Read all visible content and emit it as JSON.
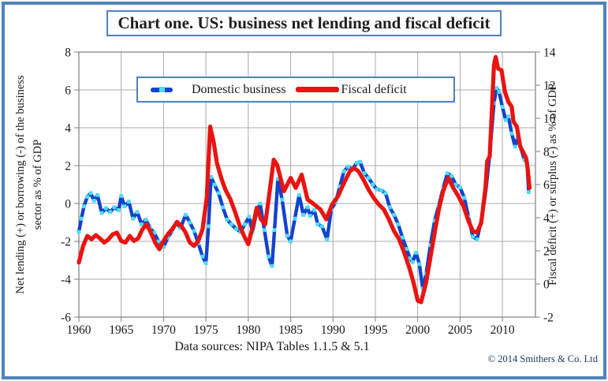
{
  "frame": {
    "title": "Chart one. US: business net lending and fiscal deficit"
  },
  "legend": {
    "items": [
      {
        "label": "Domestic business"
      },
      {
        "label": "Fiscal deficit"
      }
    ]
  },
  "axes": {
    "left": {
      "title_line1": "Net lending (+) or borrowing (-) of the business",
      "title_line2": "sector as % of GDP"
    },
    "right": {
      "title": "Fiscal deficit (+) or surplus (-) as % of GDP"
    }
  },
  "footer": {
    "source": "Data sources: NIPA Tables 1.1.5 & 5.1",
    "copyright": "© 2014 Smithers & Co. Ltd"
  },
  "colors": {
    "frame_border": "#4f81bd",
    "grid": "#a9a9a9",
    "axis": "#7f7f7f",
    "text": "#191919",
    "blue_line": "#1243cd",
    "marker": "#4edcf2",
    "red_line": "#e91310",
    "copyright": "#17375e"
  },
  "chart_data": {
    "type": "line",
    "title": "Chart one. US: business net lending and fiscal deficit",
    "grid": true,
    "legend_position": "top-center",
    "x_axis": {
      "range": [
        1960,
        2013.9
      ],
      "ticks": [
        1960,
        1965,
        1970,
        1975,
        1980,
        1985,
        1990,
        1995,
        2000,
        2005,
        2010
      ]
    },
    "left_axis": {
      "label": "Net lending (+) or borrowing (-) of the business sector as % of GDP",
      "range": [
        8,
        -6
      ],
      "ticks": [
        8,
        6,
        4,
        2,
        0,
        -2,
        -4,
        -6
      ]
    },
    "right_axis": {
      "label": "Fiscal deficit (+) or surplus (-) as % of GDP",
      "range": [
        14,
        -2
      ],
      "ticks": [
        14,
        12,
        10,
        8,
        6,
        4,
        2,
        0,
        -2
      ]
    },
    "series": [
      {
        "name": "Domestic business",
        "axis": "left",
        "color": "#1243cd",
        "marker": "square",
        "marker_color": "#4edcf2",
        "line_width": 4.4,
        "points": [
          [
            1960.0,
            -1.5
          ],
          [
            1960.3,
            -0.8
          ],
          [
            1960.6,
            -0.15
          ],
          [
            1961.0,
            0.35
          ],
          [
            1961.4,
            0.55
          ],
          [
            1961.8,
            0.15
          ],
          [
            1962.2,
            0.45
          ],
          [
            1962.7,
            -0.5
          ],
          [
            1963.2,
            -0.25
          ],
          [
            1963.7,
            -0.45
          ],
          [
            1964.2,
            -0.2
          ],
          [
            1964.7,
            -0.35
          ],
          [
            1965.0,
            0.4
          ],
          [
            1965.4,
            -0.15
          ],
          [
            1965.9,
            0.1
          ],
          [
            1966.4,
            -0.8
          ],
          [
            1966.9,
            -0.45
          ],
          [
            1967.4,
            -1.1
          ],
          [
            1967.9,
            -0.85
          ],
          [
            1968.4,
            -1.3
          ],
          [
            1968.9,
            -1.55
          ],
          [
            1969.4,
            -2.0
          ],
          [
            1970.0,
            -2.3
          ],
          [
            1970.5,
            -1.8
          ],
          [
            1971.0,
            -1.45
          ],
          [
            1971.5,
            -1.0
          ],
          [
            1972.0,
            -1.3
          ],
          [
            1972.6,
            -0.6
          ],
          [
            1973.1,
            -1.0
          ],
          [
            1973.6,
            -1.45
          ],
          [
            1974.1,
            -2.1
          ],
          [
            1974.6,
            -2.8
          ],
          [
            1975.0,
            -3.15
          ],
          [
            1975.3,
            -1.2
          ],
          [
            1975.6,
            1.4
          ],
          [
            1976.0,
            1.0
          ],
          [
            1976.5,
            0.55
          ],
          [
            1977.0,
            -0.2
          ],
          [
            1977.5,
            -0.85
          ],
          [
            1978.0,
            -1.1
          ],
          [
            1978.6,
            -1.35
          ],
          [
            1979.1,
            -1.5
          ],
          [
            1979.6,
            -1.1
          ],
          [
            1980.1,
            -0.7
          ],
          [
            1980.5,
            -1.5
          ],
          [
            1981.0,
            -0.4
          ],
          [
            1981.4,
            0.0
          ],
          [
            1981.9,
            -1.4
          ],
          [
            1982.4,
            -2.8
          ],
          [
            1982.8,
            -3.3
          ],
          [
            1983.1,
            -1.4
          ],
          [
            1983.5,
            1.3
          ],
          [
            1984.0,
            0.2
          ],
          [
            1984.6,
            -1.7
          ],
          [
            1985.0,
            -2.0
          ],
          [
            1985.5,
            -0.8
          ],
          [
            1986.0,
            0.45
          ],
          [
            1986.5,
            -0.6
          ],
          [
            1987.0,
            -0.2
          ],
          [
            1987.3,
            -0.65
          ],
          [
            1987.8,
            -0.35
          ],
          [
            1988.2,
            -1.1
          ],
          [
            1988.7,
            -1.2
          ],
          [
            1989.3,
            -1.9
          ],
          [
            1989.8,
            -0.3
          ],
          [
            1990.3,
            0.05
          ],
          [
            1990.8,
            0.9
          ],
          [
            1991.3,
            1.7
          ],
          [
            1991.8,
            1.95
          ],
          [
            1992.3,
            1.8
          ],
          [
            1992.8,
            2.15
          ],
          [
            1993.2,
            2.2
          ],
          [
            1993.7,
            1.6
          ],
          [
            1994.2,
            1.35
          ],
          [
            1994.7,
            1.0
          ],
          [
            1995.2,
            0.75
          ],
          [
            1995.7,
            0.7
          ],
          [
            1996.2,
            0.55
          ],
          [
            1996.7,
            -0.2
          ],
          [
            1997.2,
            -0.6
          ],
          [
            1997.7,
            -1.1
          ],
          [
            1998.2,
            -1.8
          ],
          [
            1998.7,
            -2.4
          ],
          [
            1999.1,
            -2.9
          ],
          [
            1999.4,
            -3.1
          ],
          [
            1999.8,
            -2.6
          ],
          [
            2000.2,
            -3.2
          ],
          [
            2000.6,
            -4.5
          ],
          [
            2001.0,
            -3.7
          ],
          [
            2001.5,
            -2.2
          ],
          [
            2002.0,
            -0.9
          ],
          [
            2002.5,
            -0.1
          ],
          [
            2003.0,
            0.8
          ],
          [
            2003.5,
            1.6
          ],
          [
            2004.0,
            1.45
          ],
          [
            2004.5,
            1.0
          ],
          [
            2005.0,
            0.85
          ],
          [
            2005.5,
            0.3
          ],
          [
            2006.0,
            -0.7
          ],
          [
            2006.5,
            -1.75
          ],
          [
            2007.0,
            -1.9
          ],
          [
            2007.5,
            -0.9
          ],
          [
            2008.0,
            0.5
          ],
          [
            2008.5,
            2.6
          ],
          [
            2009.0,
            5.3
          ],
          [
            2009.3,
            6.1
          ],
          [
            2009.6,
            5.9
          ],
          [
            2010.0,
            5.1
          ],
          [
            2010.4,
            4.4
          ],
          [
            2010.7,
            4.6
          ],
          [
            2011.1,
            3.7
          ],
          [
            2011.5,
            3.0
          ],
          [
            2011.8,
            3.5
          ],
          [
            2012.2,
            2.9
          ],
          [
            2012.6,
            2.3
          ],
          [
            2012.9,
            2.2
          ],
          [
            2013.1,
            0.6
          ]
        ]
      },
      {
        "name": "Fiscal deficit",
        "axis": "right",
        "color": "#e91310",
        "marker": "none",
        "line_width": 5.2,
        "points": [
          [
            1960.0,
            1.3
          ],
          [
            1960.5,
            2.3
          ],
          [
            1961.0,
            2.9
          ],
          [
            1961.5,
            2.7
          ],
          [
            1962.0,
            2.95
          ],
          [
            1962.5,
            2.75
          ],
          [
            1963.0,
            2.5
          ],
          [
            1963.5,
            2.7
          ],
          [
            1964.0,
            3.0
          ],
          [
            1964.5,
            3.1
          ],
          [
            1965.0,
            2.6
          ],
          [
            1965.5,
            2.5
          ],
          [
            1966.0,
            2.9
          ],
          [
            1966.5,
            2.6
          ],
          [
            1967.0,
            2.75
          ],
          [
            1967.5,
            3.3
          ],
          [
            1968.0,
            3.6
          ],
          [
            1968.5,
            3.1
          ],
          [
            1969.0,
            2.5
          ],
          [
            1969.5,
            2.1
          ],
          [
            1970.0,
            2.6
          ],
          [
            1970.5,
            3.0
          ],
          [
            1971.0,
            3.3
          ],
          [
            1971.6,
            3.75
          ],
          [
            1972.1,
            3.5
          ],
          [
            1972.6,
            3.1
          ],
          [
            1973.1,
            2.5
          ],
          [
            1973.6,
            2.3
          ],
          [
            1974.1,
            2.6
          ],
          [
            1974.6,
            3.3
          ],
          [
            1975.1,
            5.2
          ],
          [
            1975.5,
            9.5
          ],
          [
            1975.9,
            8.6
          ],
          [
            1976.3,
            7.3
          ],
          [
            1976.8,
            6.4
          ],
          [
            1977.3,
            5.7
          ],
          [
            1977.9,
            5.1
          ],
          [
            1978.4,
            4.4
          ],
          [
            1979.0,
            3.5
          ],
          [
            1979.5,
            2.9
          ],
          [
            1980.0,
            2.4
          ],
          [
            1980.5,
            3.4
          ],
          [
            1981.0,
            4.6
          ],
          [
            1981.5,
            3.9
          ],
          [
            1982.0,
            3.6
          ],
          [
            1982.5,
            5.5
          ],
          [
            1983.0,
            7.5
          ],
          [
            1983.4,
            7.2
          ],
          [
            1984.2,
            5.6
          ],
          [
            1985.0,
            6.4
          ],
          [
            1985.6,
            5.8
          ],
          [
            1986.3,
            6.6
          ],
          [
            1987.0,
            5.1
          ],
          [
            1987.8,
            4.8
          ],
          [
            1988.5,
            4.5
          ],
          [
            1989.2,
            3.9
          ],
          [
            1989.9,
            4.8
          ],
          [
            1990.6,
            5.3
          ],
          [
            1991.3,
            6.1
          ],
          [
            1992.0,
            6.8
          ],
          [
            1992.5,
            7.0
          ],
          [
            1993.0,
            6.8
          ],
          [
            1993.6,
            6.3
          ],
          [
            1994.2,
            5.7
          ],
          [
            1994.8,
            5.2
          ],
          [
            1995.4,
            4.8
          ],
          [
            1996.0,
            4.5
          ],
          [
            1996.6,
            3.9
          ],
          [
            1997.2,
            3.2
          ],
          [
            1997.8,
            2.7
          ],
          [
            1998.4,
            1.9
          ],
          [
            1999.0,
            1.0
          ],
          [
            1999.5,
            0.1
          ],
          [
            2000.0,
            -1.0
          ],
          [
            2000.4,
            -1.1
          ],
          [
            2001.0,
            0.1
          ],
          [
            2001.5,
            1.6
          ],
          [
            2002.0,
            3.1
          ],
          [
            2002.5,
            4.5
          ],
          [
            2003.0,
            5.6
          ],
          [
            2003.6,
            6.4
          ],
          [
            2004.2,
            5.8
          ],
          [
            2004.8,
            5.3
          ],
          [
            2005.4,
            4.7
          ],
          [
            2006.0,
            3.8
          ],
          [
            2006.5,
            3.2
          ],
          [
            2007.0,
            3.1
          ],
          [
            2007.5,
            3.7
          ],
          [
            2008.0,
            5.8
          ],
          [
            2008.2,
            7.4
          ],
          [
            2008.5,
            7.7
          ],
          [
            2009.0,
            13.2
          ],
          [
            2009.2,
            13.7
          ],
          [
            2009.5,
            13.0
          ],
          [
            2009.9,
            12.9
          ],
          [
            2010.3,
            11.6
          ],
          [
            2010.7,
            11.0
          ],
          [
            2011.1,
            10.7
          ],
          [
            2011.3,
            9.8
          ],
          [
            2011.7,
            9.5
          ],
          [
            2012.1,
            8.3
          ],
          [
            2012.5,
            7.9
          ],
          [
            2012.8,
            7.6
          ],
          [
            2013.0,
            6.9
          ],
          [
            2013.2,
            5.8
          ]
        ]
      }
    ]
  }
}
